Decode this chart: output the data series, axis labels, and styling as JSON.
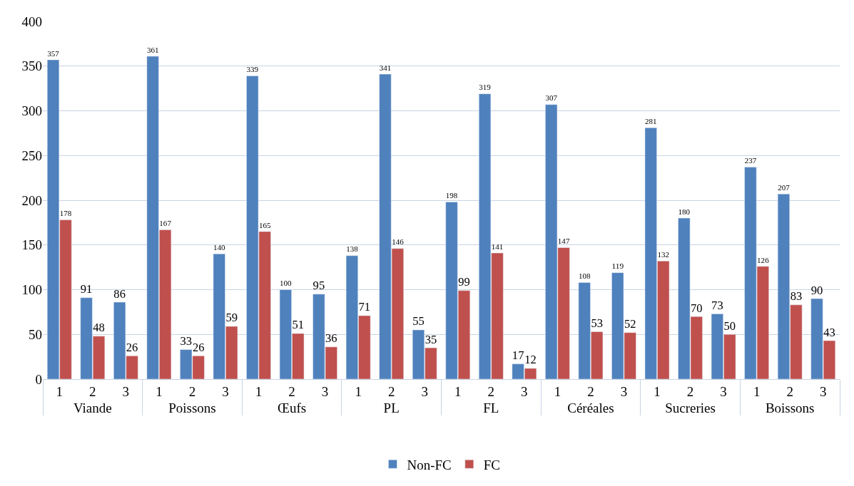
{
  "chart_data": {
    "type": "bar",
    "categories": [
      "1",
      "2",
      "3",
      "1",
      "2",
      "3",
      "1",
      "2",
      "3",
      "1",
      "2",
      "3",
      "1",
      "2",
      "3",
      "1",
      "2",
      "3",
      "1",
      "2",
      "3",
      "1",
      "2",
      "3"
    ],
    "annotations": [
      "Viande",
      "Poissons",
      "Œufs",
      "PL",
      "FL",
      "Céréales",
      "Sucreries",
      "Boissons"
    ],
    "series": [
      {
        "name": "Non-FC",
        "color": "#4f81bd",
        "values": [
          357,
          91,
          86,
          361,
          33,
          140,
          339,
          100,
          95,
          138,
          341,
          55,
          198,
          319,
          17,
          307,
          108,
          119,
          281,
          180,
          73,
          237,
          207,
          90
        ]
      },
      {
        "name": "FC",
        "color": "#c0504d",
        "values": [
          178,
          48,
          26,
          167,
          26,
          59,
          165,
          51,
          36,
          71,
          146,
          35,
          99,
          141,
          12,
          147,
          53,
          52,
          132,
          70,
          50,
          126,
          83,
          43
        ]
      }
    ],
    "ylim": [
      0,
      400
    ],
    "yticks": [
      0,
      50,
      100,
      150,
      200,
      250,
      300,
      350,
      400
    ],
    "grid": "y",
    "legend": "bottom",
    "data_labels": true
  }
}
